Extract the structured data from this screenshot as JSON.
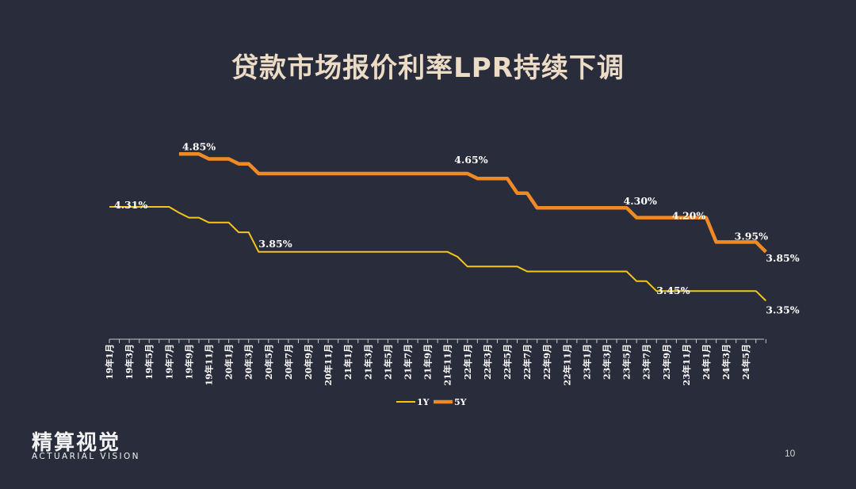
{
  "title": "贷款市场报价利率LPR持续下调",
  "logo": {
    "cn": "精算视觉",
    "en": "ACTUARIAL VISION"
  },
  "page_number": "10",
  "colors": {
    "background": "#292c3a",
    "series_1y": "#f5c518",
    "series_5y": "#f08a24",
    "title": "#ecdcc5"
  },
  "chart_data": {
    "type": "line",
    "title": "贷款市场报价利率LPR持续下调",
    "xlabel": "",
    "ylabel": "",
    "categories": [
      "19年1月",
      "19年2月",
      "19年3月",
      "19年4月",
      "19年5月",
      "19年6月",
      "19年7月",
      "19年8月",
      "19年9月",
      "19年10月",
      "19年11月",
      "19年12月",
      "20年1月",
      "20年2月",
      "20年3月",
      "20年4月",
      "20年5月",
      "20年6月",
      "20年7月",
      "20年8月",
      "20年9月",
      "20年10月",
      "20年11月",
      "20年12月",
      "21年1月",
      "21年2月",
      "21年3月",
      "21年4月",
      "21年5月",
      "21年6月",
      "21年7月",
      "21年8月",
      "21年9月",
      "21年10月",
      "21年11月",
      "21年12月",
      "22年1月",
      "22年2月",
      "22年3月",
      "22年4月",
      "22年5月",
      "22年6月",
      "22年7月",
      "22年8月",
      "22年9月",
      "22年10月",
      "22年11月",
      "22年12月",
      "23年1月",
      "23年2月",
      "23年3月",
      "23年4月",
      "23年5月",
      "23年6月",
      "23年7月",
      "23年8月",
      "23年9月",
      "23年10月",
      "23年11月",
      "23年12月",
      "24年1月",
      "24年2月",
      "24年3月",
      "24年4月",
      "24年5月",
      "24年6月",
      "24年7月"
    ],
    "tick_labels": [
      "19年1月",
      "19年3月",
      "19年5月",
      "19年7月",
      "19年9月",
      "19年11月",
      "20年1月",
      "20年3月",
      "20年5月",
      "20年7月",
      "20年9月",
      "20年11月",
      "21年1月",
      "21年3月",
      "21年5月",
      "21年7月",
      "21年9月",
      "21年11月",
      "22年1月",
      "22年3月",
      "22年5月",
      "22年7月",
      "22年9月",
      "22年11月",
      "23年1月",
      "23年3月",
      "23年5月",
      "23年7月",
      "23年9月",
      "23年11月",
      "24年1月",
      "24年3月",
      "24年5月"
    ],
    "series": [
      {
        "name": "1Y",
        "values": [
          4.31,
          4.31,
          4.31,
          4.31,
          4.31,
          4.31,
          4.31,
          4.25,
          4.2,
          4.2,
          4.15,
          4.15,
          4.15,
          4.05,
          4.05,
          3.85,
          3.85,
          3.85,
          3.85,
          3.85,
          3.85,
          3.85,
          3.85,
          3.85,
          3.85,
          3.85,
          3.85,
          3.85,
          3.85,
          3.85,
          3.85,
          3.85,
          3.85,
          3.85,
          3.85,
          3.8,
          3.7,
          3.7,
          3.7,
          3.7,
          3.7,
          3.7,
          3.65,
          3.65,
          3.65,
          3.65,
          3.65,
          3.65,
          3.65,
          3.65,
          3.65,
          3.65,
          3.65,
          3.55,
          3.55,
          3.45,
          3.45,
          3.45,
          3.45,
          3.45,
          3.45,
          3.45,
          3.45,
          3.45,
          3.45,
          3.45,
          3.35
        ]
      },
      {
        "name": "5Y",
        "values": [
          null,
          null,
          null,
          null,
          null,
          null,
          null,
          4.85,
          4.85,
          4.85,
          4.8,
          4.8,
          4.8,
          4.75,
          4.75,
          4.65,
          4.65,
          4.65,
          4.65,
          4.65,
          4.65,
          4.65,
          4.65,
          4.65,
          4.65,
          4.65,
          4.65,
          4.65,
          4.65,
          4.65,
          4.65,
          4.65,
          4.65,
          4.65,
          4.65,
          4.65,
          4.65,
          4.6,
          4.6,
          4.6,
          4.6,
          4.45,
          4.45,
          4.3,
          4.3,
          4.3,
          4.3,
          4.3,
          4.3,
          4.3,
          4.3,
          4.3,
          4.3,
          4.2,
          4.2,
          4.2,
          4.2,
          4.2,
          4.2,
          4.2,
          4.2,
          3.95,
          3.95,
          3.95,
          3.95,
          3.95,
          3.85
        ]
      }
    ],
    "data_labels": [
      {
        "series": "5Y",
        "index": 7,
        "text": "4.85%"
      },
      {
        "series": "5Y",
        "index": 35,
        "text": "4.65%"
      },
      {
        "series": "5Y",
        "index": 52,
        "text": "4.30%"
      },
      {
        "series": "5Y",
        "index": 58,
        "text": "4.20%"
      },
      {
        "series": "5Y",
        "index": 63,
        "text": "3.95%"
      },
      {
        "series": "5Y",
        "index": 66,
        "text": "3.85%"
      },
      {
        "series": "1Y",
        "index": 0,
        "text": "4.31%"
      },
      {
        "series": "1Y",
        "index": 15,
        "text": "3.85%"
      },
      {
        "series": "1Y",
        "index": 55,
        "text": "3.45%"
      },
      {
        "series": "1Y",
        "index": 66,
        "text": "3.35%"
      }
    ],
    "ylim": [
      2.9,
      5.2
    ],
    "grid": false,
    "legend": "bottom-center"
  }
}
